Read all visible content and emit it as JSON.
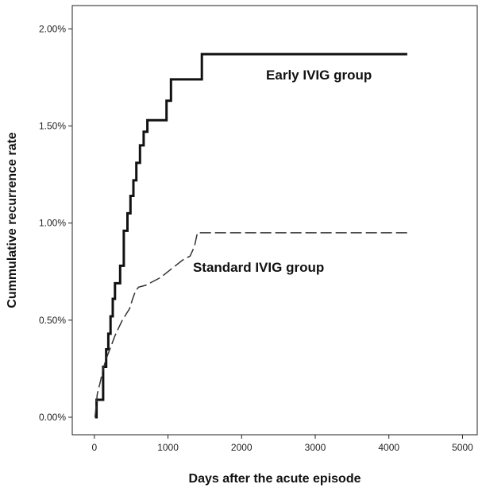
{
  "chart_data": {
    "type": "line",
    "title": "",
    "xlabel": "Days after the acute episode",
    "ylabel": "Cummulative recurrence rate",
    "xlim": [
      -300,
      5200
    ],
    "ylim": [
      -0.0009,
      0.0212
    ],
    "xticks": [
      0,
      1000,
      2000,
      3000,
      4000,
      5000
    ],
    "xtick_labels": [
      "0",
      "1000",
      "2000",
      "3000",
      "4000",
      "5000"
    ],
    "yticks": [
      0.0,
      0.005,
      0.01,
      0.015,
      0.02
    ],
    "ytick_labels": [
      "0.00%",
      "0.50%",
      "1.00%",
      "1.50%",
      "2.00%"
    ],
    "grid": false,
    "legend": "none",
    "series": [
      {
        "name": "Early IVIG group",
        "style": "solid",
        "color": "#111111",
        "x": [
          10,
          30,
          30,
          120,
          120,
          160,
          160,
          190,
          190,
          220,
          220,
          250,
          250,
          280,
          280,
          350,
          350,
          400,
          400,
          450,
          450,
          490,
          490,
          530,
          530,
          570,
          570,
          620,
          620,
          670,
          670,
          720,
          720,
          760,
          760,
          980,
          980,
          1040,
          1040,
          1460,
          1460,
          4250
        ],
        "y": [
          0.0,
          0.0,
          0.0009,
          0.0009,
          0.0026,
          0.0026,
          0.0035,
          0.0035,
          0.0043,
          0.0043,
          0.0052,
          0.0052,
          0.0061,
          0.0061,
          0.0069,
          0.0069,
          0.0078,
          0.0078,
          0.0096,
          0.0096,
          0.0105,
          0.0105,
          0.0114,
          0.0114,
          0.0122,
          0.0122,
          0.0131,
          0.0131,
          0.014,
          0.014,
          0.0147,
          0.0147,
          0.0153,
          0.0153,
          0.0153,
          0.0153,
          0.0163,
          0.0163,
          0.0174,
          0.0174,
          0.0187,
          0.0187
        ]
      },
      {
        "name": "Standard IVIG group",
        "style": "dashed",
        "color": "#333333",
        "x": [
          10,
          40,
          80,
          120,
          160,
          200,
          240,
          280,
          330,
          380,
          430,
          480,
          520,
          560,
          600,
          700,
          800,
          900,
          1000,
          1100,
          1200,
          1300,
          1360,
          1400,
          4250
        ],
        "y": [
          0.0,
          0.0012,
          0.0018,
          0.0025,
          0.003,
          0.0034,
          0.0038,
          0.0042,
          0.0046,
          0.005,
          0.0053,
          0.0056,
          0.0061,
          0.0065,
          0.0067,
          0.0068,
          0.007,
          0.0072,
          0.0075,
          0.0078,
          0.0081,
          0.0083,
          0.0088,
          0.0095,
          0.0095
        ]
      }
    ],
    "annotations": [
      {
        "text": "Early IVIG group",
        "x": 3050,
        "y": 0.0174
      },
      {
        "text": "Standard IVIG group",
        "x": 2230,
        "y": 0.0075
      }
    ]
  }
}
